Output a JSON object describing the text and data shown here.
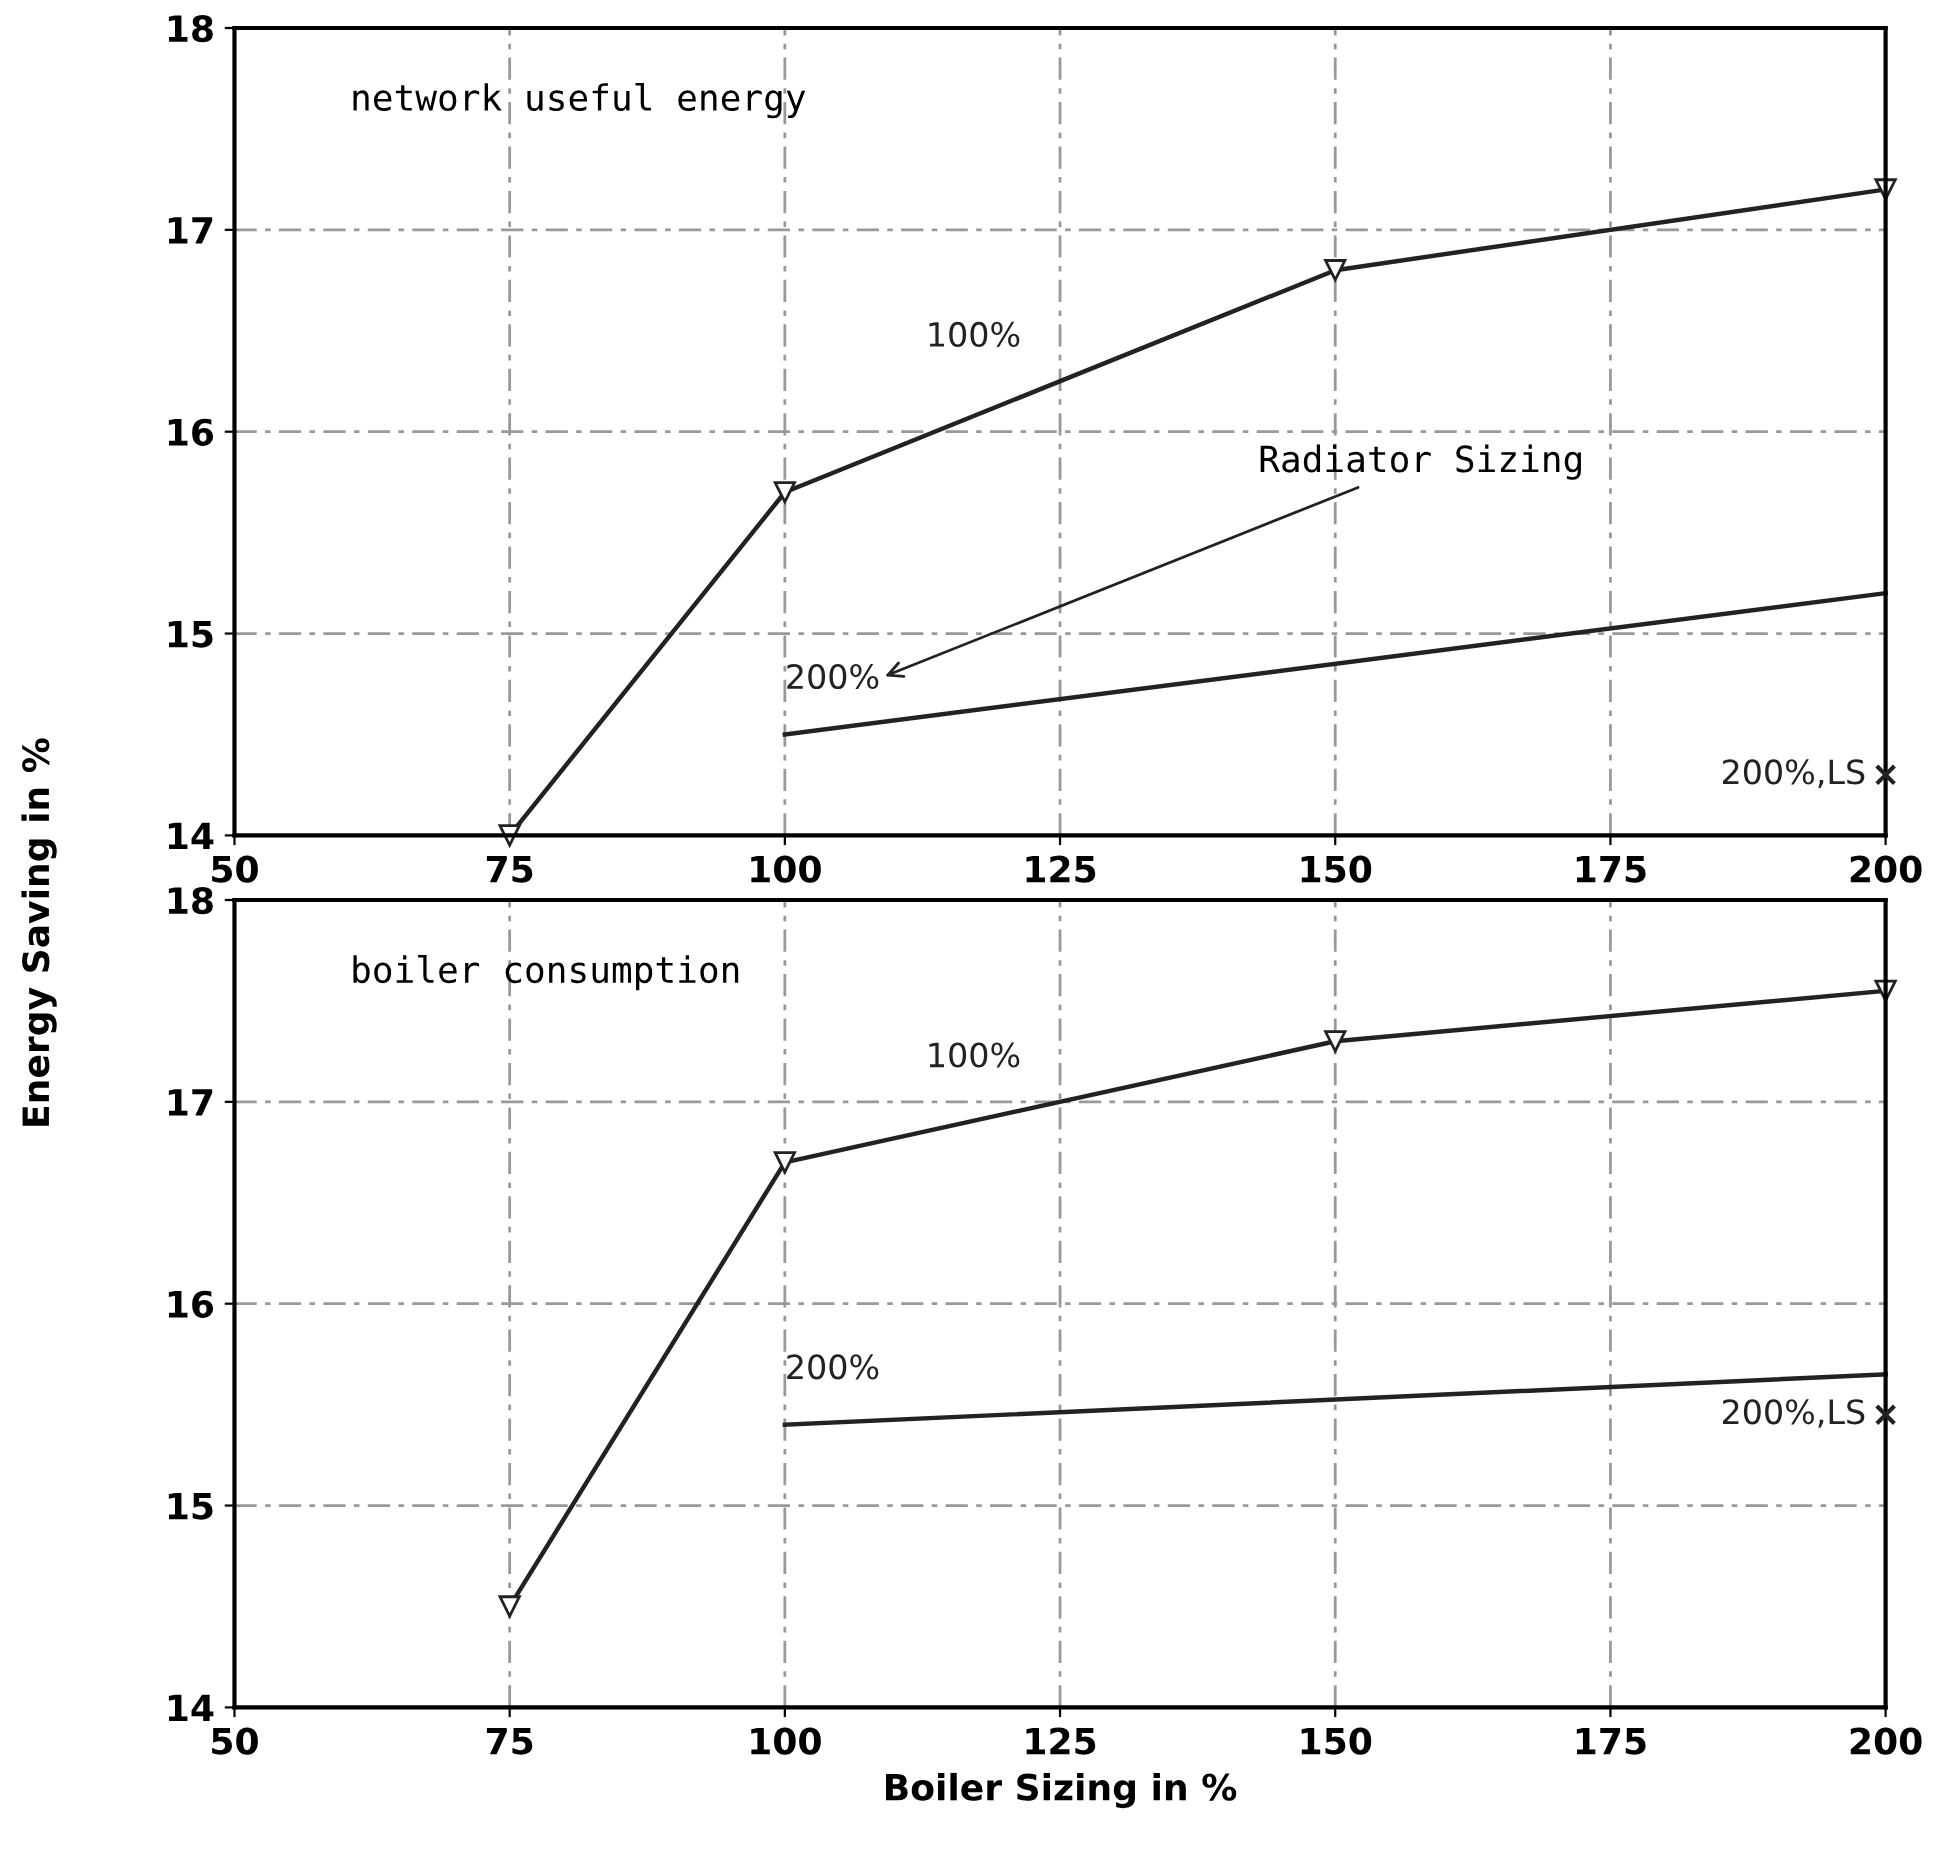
{
  "chart_data": [
    {
      "type": "line",
      "title": "network useful energy",
      "ylabel": "Energy Saving in %",
      "xlim": [
        50,
        200
      ],
      "xticks": [
        50,
        75,
        100,
        125,
        150,
        175,
        200
      ],
      "ylim": [
        14,
        18
      ],
      "yticks": [
        14,
        15,
        16,
        17,
        18
      ],
      "grid": true,
      "annotations": [
        "Radiator Sizing"
      ],
      "series": [
        {
          "name": "100%",
          "color": "#222222",
          "marker": "triangle",
          "x": [
            75,
            100,
            150,
            200
          ],
          "values": [
            14.0,
            15.7,
            16.8,
            17.2
          ]
        },
        {
          "name": "200%",
          "color": "#222222",
          "marker": "none",
          "x": [
            100,
            200
          ],
          "values": [
            14.5,
            15.2
          ]
        },
        {
          "name": "200%,LS",
          "type": "scatter",
          "color": "#222222",
          "marker": "cross",
          "x": [
            200
          ],
          "values": [
            14.3
          ]
        }
      ]
    },
    {
      "type": "line",
      "title": "boiler consumption",
      "xlabel": "Boiler Sizing in %",
      "xlim": [
        50,
        200
      ],
      "xticks": [
        50,
        75,
        100,
        125,
        150,
        175,
        200
      ],
      "ylim": [
        14,
        18
      ],
      "yticks": [
        14,
        15,
        16,
        17,
        18
      ],
      "grid": true,
      "legend": false,
      "series": [
        {
          "name": "100%",
          "color": "#222222",
          "marker": "triangle",
          "x": [
            75,
            100,
            150,
            200
          ],
          "values": [
            14.5,
            16.7,
            17.3,
            17.55
          ]
        },
        {
          "name": "200%",
          "color": "#222222",
          "marker": "none",
          "x": [
            100,
            200
          ],
          "values": [
            15.4,
            15.65
          ]
        },
        {
          "name": "200%,LS",
          "type": "scatter",
          "color": "#222222",
          "marker": "cross",
          "x": [
            200
          ],
          "values": [
            15.45
          ]
        }
      ]
    }
  ]
}
